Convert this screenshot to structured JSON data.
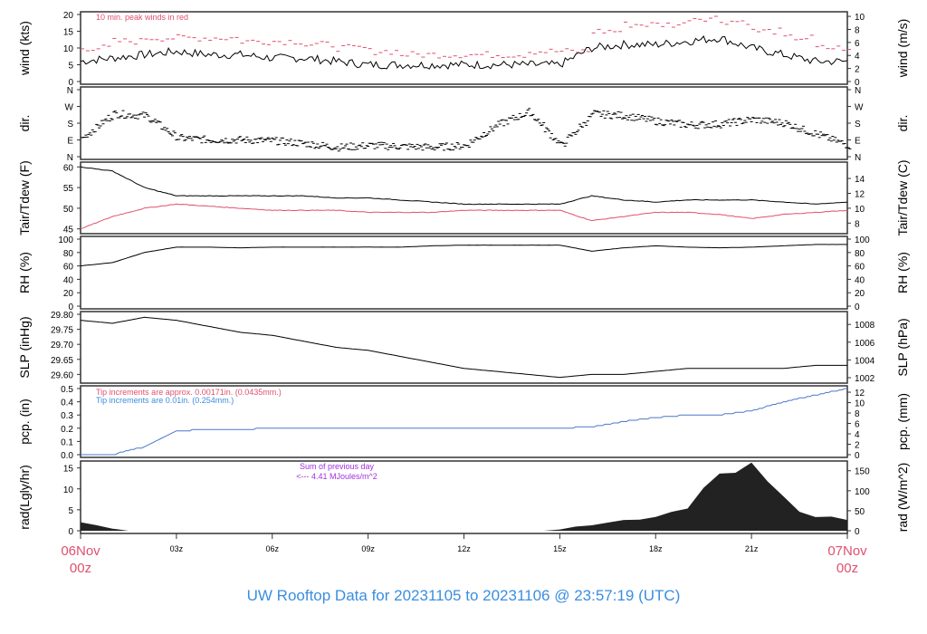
{
  "chart_data": [
    {
      "type": "line",
      "ylabel": "wind (kts)",
      "ylabel_right": "wind (m/s)",
      "ylim": [
        0,
        20
      ],
      "yticks": [
        0,
        5,
        10,
        15,
        20
      ],
      "ylim_right": [
        0,
        10.29
      ],
      "yticks_right": [
        0,
        2,
        4,
        6,
        8,
        10
      ],
      "annotation": "10 min. peak winds in red",
      "annotation_color": "#e0506e",
      "series": [
        {
          "values": [
            6,
            7,
            8,
            9,
            8,
            8,
            7,
            7,
            6,
            5,
            5,
            5,
            5,
            5,
            5,
            5,
            10,
            11,
            11,
            12,
            13,
            10,
            8,
            6,
            6
          ],
          "color": "#000000"
        },
        {
          "values": [
            10,
            12,
            13,
            13,
            13,
            12,
            12,
            11,
            10,
            9,
            8,
            8,
            8,
            8,
            9,
            9,
            15,
            17,
            17,
            19,
            18,
            15,
            13,
            10,
            9
          ],
          "color": "#e0506e",
          "style": "dash-marks"
        }
      ]
    },
    {
      "type": "scatter",
      "ylabel": "dir.",
      "ylabel_right": "dir.",
      "ylim": [
        0,
        360
      ],
      "ytick_labels": [
        "N",
        "E",
        "S",
        "W",
        "N"
      ],
      "series": [
        {
          "values": [
            100,
            230,
            220,
            100,
            90,
            90,
            85,
            70,
            50,
            60,
            55,
            50,
            60,
            170,
            240,
            60,
            230,
            220,
            190,
            170,
            175,
            200,
            180,
            120,
            60
          ],
          "color": "#000000"
        }
      ]
    },
    {
      "type": "line",
      "ylabel": "Tair/Tdew (F)",
      "ylabel_right": "Tair/Tdew (C)",
      "ylim": [
        44.5,
        60.5
      ],
      "yticks": [
        45,
        50,
        55,
        60
      ],
      "yticks_right": [
        8,
        10,
        12,
        14
      ],
      "series": [
        {
          "values": [
            60,
            59,
            55,
            53,
            53,
            53,
            53,
            53,
            52.5,
            52.5,
            52,
            51.5,
            51,
            51,
            51,
            51,
            53,
            52,
            51.5,
            52,
            52,
            52,
            51.5,
            51,
            51.5
          ],
          "color": "#000000"
        },
        {
          "values": [
            45,
            48,
            50,
            51,
            50.5,
            50,
            49.5,
            49.5,
            49.5,
            49,
            49,
            49,
            49.5,
            49.5,
            49.5,
            49.5,
            47,
            48,
            49,
            49,
            48.5,
            47.5,
            48.5,
            49,
            49.5
          ],
          "color": "#e0506e"
        }
      ]
    },
    {
      "type": "line",
      "ylabel": "RH (%)",
      "ylabel_right": "RH (%)",
      "ylim": [
        0,
        100
      ],
      "yticks": [
        0,
        20,
        40,
        60,
        80,
        100
      ],
      "series": [
        {
          "values": [
            60,
            65,
            80,
            88,
            88,
            87,
            88,
            88,
            88,
            88,
            88,
            90,
            91,
            91,
            91,
            91,
            82,
            87,
            90,
            88,
            87,
            88,
            90,
            92,
            92
          ],
          "color": "#000000"
        }
      ]
    },
    {
      "type": "line",
      "ylabel": "SLP (inHg)",
      "ylabel_right": "SLP (hPa)",
      "ylim": [
        29.58,
        29.8
      ],
      "yticks": [
        29.6,
        29.65,
        29.7,
        29.75,
        29.8
      ],
      "yticks_right": [
        1002,
        1004,
        1006,
        1008
      ],
      "series": [
        {
          "values": [
            29.78,
            29.77,
            29.79,
            29.78,
            29.76,
            29.74,
            29.73,
            29.71,
            29.69,
            29.68,
            29.66,
            29.64,
            29.62,
            29.61,
            29.6,
            29.59,
            29.6,
            29.6,
            29.61,
            29.62,
            29.62,
            29.62,
            29.62,
            29.63,
            29.63
          ],
          "color": "#000000"
        }
      ]
    },
    {
      "type": "line",
      "ylabel": "pcp. (in)",
      "ylabel_right": "pcp. (mm)",
      "ylim": [
        0,
        0.5
      ],
      "yticks": [
        0,
        0.1,
        0.2,
        0.3,
        0.4,
        0.5
      ],
      "yticks_right": [
        0,
        2,
        4,
        6,
        8,
        10,
        12
      ],
      "annotations": [
        {
          "text": "Tip increments are approx. 0.00171in. (0.0435mm.)",
          "color": "#e0506e"
        },
        {
          "text": "Tip increments are 0.01in. (0.254mm.)",
          "color": "#3a8ee0"
        }
      ],
      "series": [
        {
          "values": [
            0,
            0,
            0.06,
            0.18,
            0.19,
            0.19,
            0.2,
            0.2,
            0.2,
            0.2,
            0.2,
            0.2,
            0.2,
            0.2,
            0.2,
            0.2,
            0.21,
            0.25,
            0.28,
            0.3,
            0.3,
            0.33,
            0.4,
            0.45,
            0.5
          ],
          "color": "#4a78c8"
        }
      ]
    },
    {
      "type": "area",
      "ylabel": "rad(Lgly/hr)",
      "ylabel_right": "rad (W/m^2)",
      "ylim": [
        0,
        16
      ],
      "yticks": [
        0,
        5,
        10,
        15
      ],
      "yticks_right": [
        0,
        50,
        100,
        150
      ],
      "annotations": [
        {
          "text": "Sum of previous day",
          "color": "#a030e0"
        },
        {
          "text": "<--- 4.41 MJoules/m^2",
          "color": "#a030e0"
        }
      ],
      "x_step_hours": 0.5,
      "series": [
        {
          "values": [
            2,
            1.2,
            0.5,
            0,
            0,
            0,
            0,
            0,
            0,
            0,
            0,
            0,
            0,
            0,
            0,
            0,
            0,
            0,
            0,
            0,
            0,
            0,
            0,
            0,
            0,
            0,
            0,
            0,
            0,
            0,
            0.3,
            1,
            1.5,
            2,
            2.5,
            3,
            3.5,
            4.5,
            6,
            9,
            13,
            14,
            15,
            12,
            8,
            5,
            3.5,
            3,
            2.5,
            2,
            2,
            1.5,
            0.5
          ],
          "color": "#222222"
        }
      ]
    }
  ],
  "x_axis": {
    "hours": [
      0,
      3,
      6,
      9,
      12,
      15,
      18,
      21,
      24
    ],
    "tick_labels": [
      "",
      "03z",
      "06z",
      "09z",
      "12z",
      "15z",
      "18z",
      "21z",
      ""
    ],
    "start_label": [
      "06Nov",
      "00z"
    ],
    "end_label": [
      "07Nov",
      "00z"
    ],
    "edge_color": "#e0506e"
  },
  "title": "UW Rooftop Data for 20231105  to  20231106 @ 23:57:19  (UTC)",
  "title_color": "#3a8ee0"
}
